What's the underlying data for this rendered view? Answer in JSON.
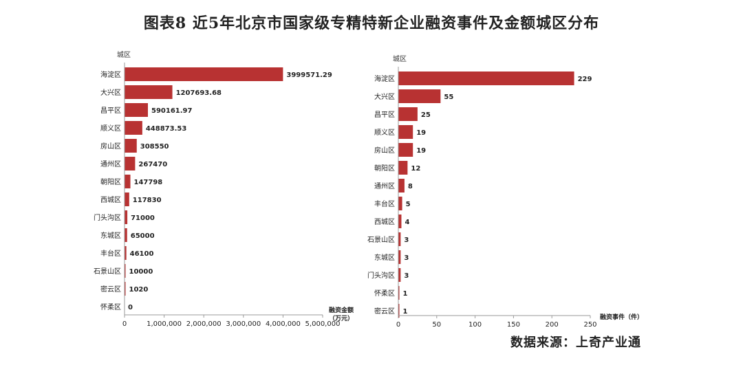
{
  "figure_title": "图表8 近5年北京市国家级专精特新企业融资事件及金额城区分布",
  "source_note": "数据来源：上奇产业通",
  "colors": {
    "bar": "#b83232",
    "axis": "#999999",
    "text": "#222222"
  },
  "chart_data": [
    {
      "type": "bar",
      "orientation": "horizontal",
      "ylabel": "城区",
      "xlabel": "融资金额（万元）",
      "categories": [
        "海淀区",
        "大兴区",
        "昌平区",
        "顺义区",
        "房山区",
        "通州区",
        "朝阳区",
        "西城区",
        "门头沟区",
        "东城区",
        "丰台区",
        "石景山区",
        "密云区",
        "怀柔区"
      ],
      "values": [
        3999571.29,
        1207693.68,
        590161.97,
        448873.53,
        308550,
        267470,
        147798,
        117830,
        71000,
        65000,
        46100,
        10000,
        1020,
        0
      ],
      "value_labels": [
        "3999571.29",
        "1207693.68",
        "590161.97",
        "448873.53",
        "308550",
        "267470",
        "147798",
        "117830",
        "71000",
        "65000",
        "46100",
        "10000",
        "1020",
        "0"
      ],
      "xlim": [
        0,
        5000000
      ],
      "xticks": [
        0,
        1000000,
        2000000,
        3000000,
        4000000,
        5000000
      ],
      "xtick_labels": [
        "0",
        "1,000,000",
        "2,000,000",
        "3,000,000",
        "4,000,000",
        "5,000,000"
      ],
      "grid": false
    },
    {
      "type": "bar",
      "orientation": "horizontal",
      "ylabel": "城区",
      "xlabel": "融资事件（件）",
      "categories": [
        "海淀区",
        "大兴区",
        "昌平区",
        "顺义区",
        "房山区",
        "朝阳区",
        "通州区",
        "丰台区",
        "西城区",
        "石景山区",
        "东城区",
        "门头沟区",
        "怀柔区",
        "密云区"
      ],
      "values": [
        229,
        55,
        25,
        19,
        19,
        12,
        8,
        5,
        4,
        3,
        3,
        3,
        1,
        1
      ],
      "value_labels": [
        "229",
        "55",
        "25",
        "19",
        "19",
        "12",
        "8",
        "5",
        "4",
        "3",
        "3",
        "3",
        "1",
        "1"
      ],
      "xlim": [
        0,
        250
      ],
      "xticks": [
        0,
        50,
        100,
        150,
        200,
        250
      ],
      "xtick_labels": [
        "0",
        "50",
        "100",
        "150",
        "200",
        "250"
      ],
      "grid": false
    }
  ]
}
